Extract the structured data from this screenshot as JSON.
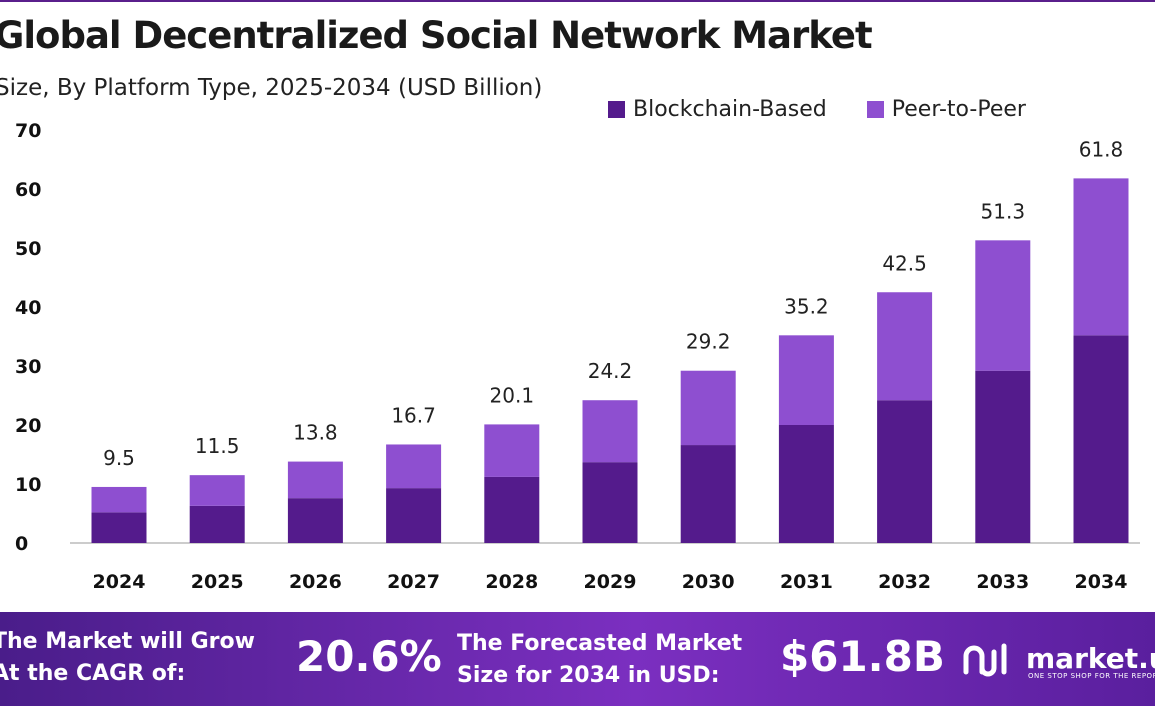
{
  "title": "Global Decentralized Social Network Market",
  "subtitle": "Size, By Platform Type, 2025-2034 (USD Billion)",
  "colors": {
    "blockchain": "#541b8c",
    "peer": "#8e4fd0",
    "axis": "#bbbbbb"
  },
  "chart_data": {
    "type": "bar",
    "stacked": true,
    "title": "Global Decentralized Social Network Market",
    "subtitle": "Size, By Platform Type, 2025-2034 (USD Billion)",
    "categories": [
      "2024",
      "2025",
      "2026",
      "2027",
      "2028",
      "2029",
      "2030",
      "2031",
      "2032",
      "2033",
      "2034"
    ],
    "series": [
      {
        "name": "Blockchain-Based",
        "values": [
          5.2,
          6.3,
          7.6,
          9.3,
          11.2,
          13.7,
          16.6,
          20.0,
          24.2,
          29.2,
          35.2
        ]
      },
      {
        "name": "Peer-to-Peer",
        "values": [
          4.3,
          5.2,
          6.2,
          7.4,
          8.9,
          10.5,
          12.6,
          15.2,
          18.3,
          22.1,
          26.6
        ]
      }
    ],
    "totals": [
      9.5,
      11.5,
      13.8,
      16.7,
      20.1,
      24.2,
      29.2,
      35.2,
      42.5,
      51.3,
      61.8
    ],
    "total_labels": [
      "9.5",
      "11.5",
      "13.8",
      "16.7",
      "20.1",
      "24.2",
      "29.2",
      "35.2",
      "42.5",
      "51.3",
      "61.8"
    ],
    "yticks": [
      "0",
      "10",
      "20",
      "30",
      "40",
      "50",
      "60",
      "70"
    ],
    "ylim": [
      0,
      70
    ],
    "xlabel": "",
    "ylabel": "",
    "grid": false,
    "legend": "top-right"
  },
  "footer": {
    "cagr_label_line1": "The Market will Grow",
    "cagr_label_line2": "At the CAGR of:",
    "cagr_value": "20.6%",
    "size_label_line1": "The Forecasted Market",
    "size_label_line2": "Size for 2034 in USD:",
    "size_value": "$61.8B",
    "brand_name": "market.us",
    "brand_tagline": "ONE STOP SHOP FOR THE REPORTS"
  }
}
